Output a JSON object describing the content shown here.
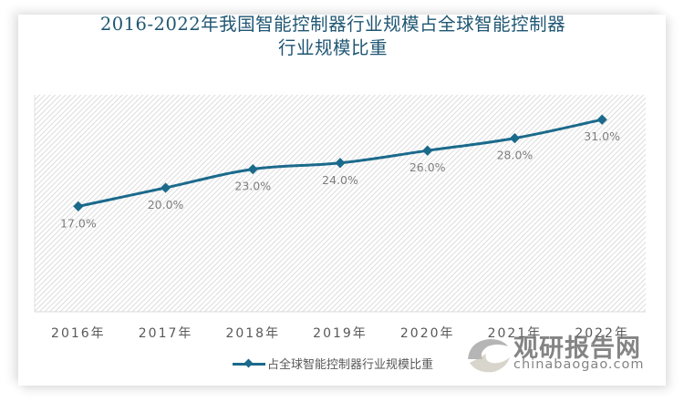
{
  "title": {
    "line1": "2016-2022年我国智能控制器行业规模占全球智能控制器",
    "line2": "行业规模比重"
  },
  "colors": {
    "series": "#1b6a8c",
    "title": "#1f5673",
    "axis_text": "#595959",
    "data_label": "#7f7f7f",
    "plot_hatch": "#d9d9d9"
  },
  "legend": {
    "label": "占全球智能控制器行业规模比重"
  },
  "watermark": {
    "cn": "观研报告网",
    "en": "chinabaogao.com"
  },
  "chart_data": {
    "type": "line",
    "title": "2016-2022年我国智能控制器行业规模占全球智能控制器行业规模比重",
    "categories": [
      "2016年",
      "2017年",
      "2018年",
      "2019年",
      "2020年",
      "2021年",
      "2022年"
    ],
    "series": [
      {
        "name": "占全球智能控制器行业规模比重",
        "values": [
          17.0,
          20.0,
          23.0,
          24.0,
          26.0,
          28.0,
          31.0
        ],
        "labels": [
          "17.0%",
          "20.0%",
          "23.0%",
          "24.0%",
          "26.0%",
          "28.0%",
          "31.0%"
        ]
      }
    ],
    "xlabel": "",
    "ylabel": "",
    "ylim": [
      0,
      35
    ],
    "y_axis_visible": false,
    "grid": false,
    "legend_position": "bottom",
    "marker": "diamond",
    "plot_background": "diagonal-hatch"
  }
}
